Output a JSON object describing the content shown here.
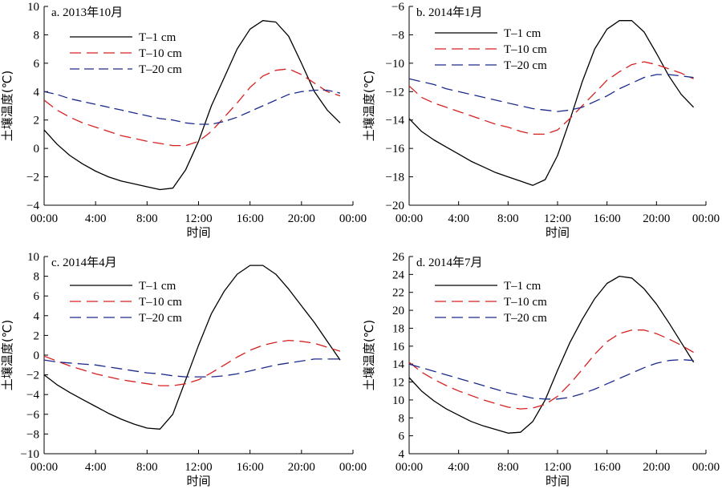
{
  "chart_data": [
    {
      "type": "line",
      "title": "a. 2013年10月",
      "xlabel": "时间",
      "ylabel": "土壤温度(℃)",
      "ylim": [
        -4,
        10
      ],
      "yticks": [
        -4,
        -2,
        0,
        2,
        4,
        6,
        8,
        10
      ],
      "xlim": [
        0,
        24
      ],
      "xticks": [
        0,
        4,
        8,
        12,
        16,
        20,
        24
      ],
      "xtick_labels": [
        "00:00",
        "4:00",
        "8:00",
        "12:00",
        "16:00",
        "20:00",
        "00:00"
      ],
      "x": [
        0,
        1,
        2,
        3,
        4,
        5,
        6,
        7,
        8,
        9,
        10,
        11,
        12,
        13,
        14,
        15,
        16,
        17,
        18,
        19,
        20,
        21,
        22,
        23
      ],
      "series": [
        {
          "name": "T–1 cm",
          "color": "#000000",
          "dash": "solid",
          "values": [
            1.3,
            0.3,
            -0.5,
            -1.1,
            -1.6,
            -2.0,
            -2.3,
            -2.5,
            -2.7,
            -2.9,
            -2.8,
            -1.5,
            0.5,
            3.0,
            5.0,
            7.0,
            8.4,
            9.0,
            8.9,
            7.9,
            6.0,
            4.0,
            2.7,
            1.8
          ]
        },
        {
          "name": "T–10 cm",
          "color": "#d62020",
          "dash": "long",
          "values": [
            3.4,
            2.7,
            2.2,
            1.8,
            1.5,
            1.2,
            0.9,
            0.7,
            0.5,
            0.35,
            0.2,
            0.2,
            0.5,
            1.2,
            2.2,
            3.2,
            4.3,
            5.1,
            5.5,
            5.6,
            5.2,
            4.6,
            4.0,
            3.7
          ]
        },
        {
          "name": "T–20 cm",
          "color": "#1c2a8c",
          "dash": "medium",
          "values": [
            4.0,
            3.8,
            3.5,
            3.3,
            3.1,
            2.9,
            2.7,
            2.5,
            2.3,
            2.1,
            2.0,
            1.8,
            1.7,
            1.7,
            1.9,
            2.2,
            2.6,
            3.0,
            3.4,
            3.8,
            4.0,
            4.1,
            4.1,
            3.9
          ]
        }
      ]
    },
    {
      "type": "line",
      "title": "b. 2014年1月",
      "xlabel": "时间",
      "ylabel": "土壤温度(℃)",
      "ylim": [
        -20,
        -6
      ],
      "yticks": [
        -20,
        -18,
        -16,
        -14,
        -12,
        -10,
        -8,
        -6
      ],
      "xlim": [
        0,
        24
      ],
      "xticks": [
        0,
        4,
        8,
        12,
        16,
        20,
        24
      ],
      "xtick_labels": [
        "00:00",
        "4:00",
        "8:00",
        "12:00",
        "16:00",
        "20:00",
        "00:00"
      ],
      "x": [
        0,
        1,
        2,
        3,
        4,
        5,
        6,
        7,
        8,
        9,
        10,
        11,
        12,
        13,
        14,
        15,
        16,
        17,
        18,
        19,
        20,
        21,
        22,
        23
      ],
      "series": [
        {
          "name": "T–1 cm",
          "color": "#000000",
          "dash": "solid",
          "values": [
            -13.9,
            -14.8,
            -15.4,
            -15.9,
            -16.4,
            -16.9,
            -17.3,
            -17.7,
            -18.0,
            -18.3,
            -18.6,
            -18.2,
            -16.5,
            -14.0,
            -11.3,
            -9.0,
            -7.6,
            -7.0,
            -7.0,
            -7.8,
            -9.3,
            -10.9,
            -12.2,
            -13.1
          ]
        },
        {
          "name": "T–10 cm",
          "color": "#d62020",
          "dash": "long",
          "values": [
            -11.6,
            -12.4,
            -12.8,
            -13.1,
            -13.4,
            -13.7,
            -14.0,
            -14.3,
            -14.5,
            -14.8,
            -15.0,
            -15.0,
            -14.7,
            -13.9,
            -13.0,
            -12.1,
            -11.2,
            -10.6,
            -10.1,
            -9.9,
            -10.1,
            -10.4,
            -10.7,
            -11.1
          ]
        },
        {
          "name": "T–20 cm",
          "color": "#1c2a8c",
          "dash": "long",
          "values": [
            -11.1,
            -11.3,
            -11.5,
            -11.8,
            -12.0,
            -12.2,
            -12.4,
            -12.6,
            -12.8,
            -13.0,
            -13.2,
            -13.3,
            -13.4,
            -13.3,
            -13.1,
            -12.7,
            -12.3,
            -11.8,
            -11.4,
            -11.0,
            -10.8,
            -10.8,
            -10.9,
            -11.0
          ]
        }
      ]
    },
    {
      "type": "line",
      "title": "c. 2014年4月",
      "xlabel": "时间",
      "ylabel": "土壤温度(℃)",
      "ylim": [
        -10,
        10
      ],
      "yticks": [
        -10,
        -8,
        -6,
        -4,
        -2,
        0,
        2,
        4,
        6,
        8,
        10
      ],
      "xlim": [
        0,
        24
      ],
      "xticks": [
        0,
        4,
        8,
        12,
        16,
        20,
        24
      ],
      "xtick_labels": [
        "00:00",
        "4:00",
        "8:00",
        "12:00",
        "16:00",
        "20:00",
        "00:00"
      ],
      "x": [
        0,
        1,
        2,
        3,
        4,
        5,
        6,
        7,
        8,
        9,
        10,
        11,
        12,
        13,
        14,
        15,
        16,
        17,
        18,
        19,
        20,
        21,
        22,
        23
      ],
      "series": [
        {
          "name": "T–1 cm",
          "color": "#000000",
          "dash": "solid",
          "values": [
            -2.0,
            -3.0,
            -3.8,
            -4.5,
            -5.2,
            -5.9,
            -6.5,
            -7.0,
            -7.4,
            -7.5,
            -6.0,
            -2.5,
            1.0,
            4.2,
            6.5,
            8.2,
            9.1,
            9.1,
            8.2,
            6.7,
            5.0,
            3.3,
            1.4,
            -0.5
          ]
        },
        {
          "name": "T–10 cm",
          "color": "#d62020",
          "dash": "long",
          "values": [
            -0.1,
            -0.6,
            -1.1,
            -1.5,
            -1.9,
            -2.2,
            -2.5,
            -2.7,
            -2.9,
            -3.1,
            -3.1,
            -2.9,
            -2.5,
            -1.8,
            -1.0,
            -0.2,
            0.5,
            1.0,
            1.3,
            1.5,
            1.4,
            1.2,
            0.8,
            0.4
          ]
        },
        {
          "name": "T–20 cm",
          "color": "#1c2a8c",
          "dash": "long",
          "values": [
            -0.5,
            -0.7,
            -0.8,
            -0.9,
            -1.0,
            -1.2,
            -1.4,
            -1.6,
            -1.8,
            -1.9,
            -2.1,
            -2.2,
            -2.2,
            -2.2,
            -2.1,
            -1.9,
            -1.6,
            -1.3,
            -1.0,
            -0.8,
            -0.6,
            -0.4,
            -0.4,
            -0.4
          ]
        }
      ]
    },
    {
      "type": "line",
      "title": "d. 2014年7月",
      "xlabel": "时间",
      "ylabel": "土壤温度(℃)",
      "ylim": [
        4,
        26
      ],
      "yticks": [
        4,
        6,
        8,
        10,
        12,
        14,
        16,
        18,
        20,
        22,
        24,
        26
      ],
      "xlim": [
        0,
        24
      ],
      "xticks": [
        0,
        4,
        8,
        12,
        16,
        20,
        24
      ],
      "xtick_labels": [
        "00:00",
        "4:00",
        "8:00",
        "12:00",
        "16:00",
        "20:00",
        "00:00"
      ],
      "x": [
        0,
        1,
        2,
        3,
        4,
        5,
        6,
        7,
        8,
        9,
        10,
        11,
        12,
        13,
        14,
        15,
        16,
        17,
        18,
        19,
        20,
        21,
        22,
        23
      ],
      "series": [
        {
          "name": "T–1 cm",
          "color": "#000000",
          "dash": "solid",
          "values": [
            12.5,
            11.0,
            9.9,
            9.0,
            8.3,
            7.6,
            7.1,
            6.7,
            6.3,
            6.4,
            7.6,
            10.0,
            13.3,
            16.4,
            19.0,
            21.3,
            23.0,
            23.8,
            23.6,
            22.4,
            20.7,
            18.6,
            16.4,
            14.2
          ]
        },
        {
          "name": "T–10 cm",
          "color": "#d62020",
          "dash": "long",
          "values": [
            14.2,
            13.1,
            12.3,
            11.6,
            11.0,
            10.5,
            10.0,
            9.6,
            9.2,
            9.0,
            9.1,
            9.5,
            10.4,
            11.8,
            13.4,
            15.1,
            16.5,
            17.4,
            17.8,
            17.8,
            17.4,
            16.8,
            16.1,
            15.3
          ]
        },
        {
          "name": "T–20 cm",
          "color": "#1c2a8c",
          "dash": "long",
          "values": [
            14.0,
            13.6,
            13.2,
            12.8,
            12.4,
            12.0,
            11.6,
            11.2,
            10.8,
            10.5,
            10.2,
            10.1,
            10.1,
            10.3,
            10.7,
            11.2,
            11.8,
            12.4,
            13.0,
            13.6,
            14.1,
            14.4,
            14.5,
            14.4
          ]
        }
      ]
    }
  ]
}
